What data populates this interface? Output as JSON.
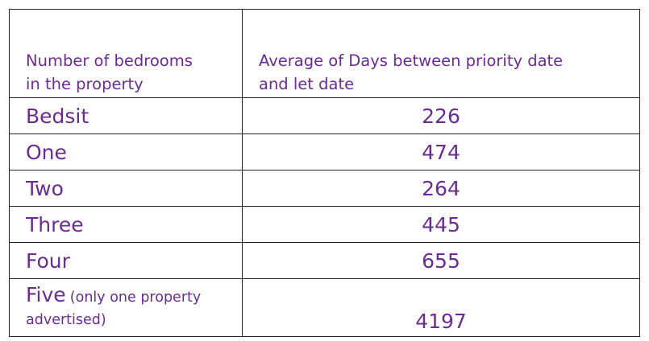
{
  "chart_data": {
    "type": "table",
    "columns": [
      "Number of bedrooms in the property",
      "Average of Days between priority date and let date"
    ],
    "header_lines": {
      "col1": [
        "Number of bedrooms",
        "in the property"
      ],
      "col2": [
        "Average of Days between priority date",
        "and let date"
      ]
    },
    "rows": [
      {
        "label": "Bedsit",
        "value": "226"
      },
      {
        "label": "One",
        "value": "474"
      },
      {
        "label": "Two",
        "value": "264"
      },
      {
        "label": "Three",
        "value": "445"
      },
      {
        "label": "Four",
        "value": "655"
      },
      {
        "label": "Five",
        "note": "(only one property advertised)",
        "value": "4197"
      }
    ],
    "text_color": "#6b2c91",
    "border_color": "#222222"
  }
}
